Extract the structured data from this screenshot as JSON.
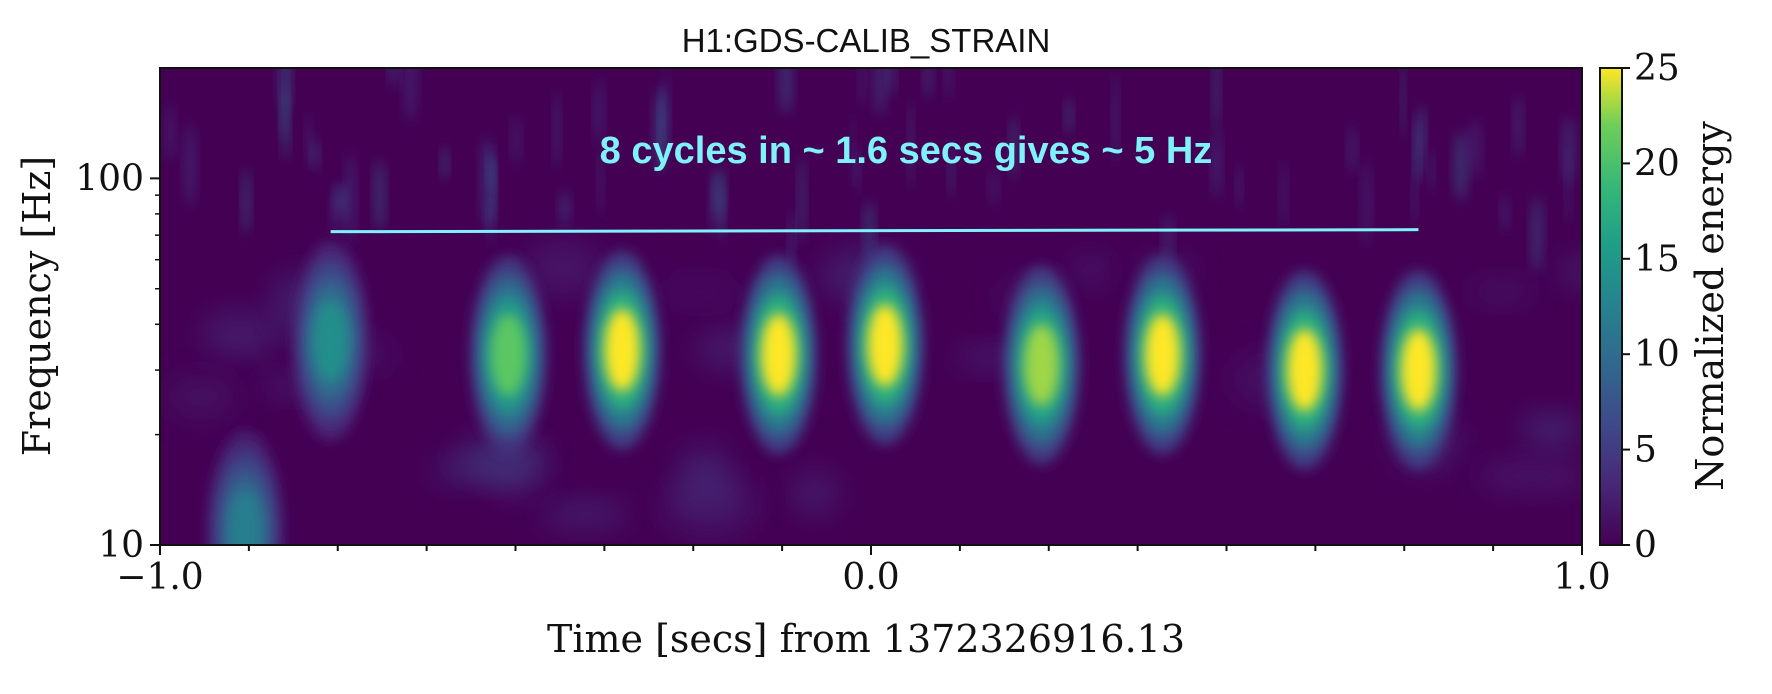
{
  "chart_data": {
    "type": "heatmap",
    "title": "H1:GDS-CALIB_STRAIN",
    "xlabel": "Time [secs] from 1372326916.13",
    "ylabel": "Frequency [Hz]",
    "xlim": [
      -1.0,
      1.0
    ],
    "ylim": [
      10,
      200
    ],
    "y_scale": "log",
    "x_ticks": [
      {
        "value": -1.0,
        "label": "−1.0"
      },
      {
        "value": 0.0,
        "label": "0.0"
      },
      {
        "value": 1.0,
        "label": "1.0"
      }
    ],
    "y_ticks": [
      {
        "value": 10,
        "label": "10"
      },
      {
        "value": 100,
        "label": "100"
      }
    ],
    "colormap": "viridis",
    "colorbar": {
      "label": "Normalized energy",
      "range": [
        0,
        25
      ],
      "ticks": [
        {
          "value": 0,
          "label": "0"
        },
        {
          "value": 5,
          "label": "5"
        },
        {
          "value": 10,
          "label": "10"
        },
        {
          "value": 15,
          "label": "15"
        },
        {
          "value": 20,
          "label": "20"
        },
        {
          "value": 25,
          "label": "25"
        }
      ]
    },
    "blobs": [
      {
        "t": -0.76,
        "f": 36,
        "peak": 14
      },
      {
        "t": -0.51,
        "f": 33,
        "peak": 21
      },
      {
        "t": -0.35,
        "f": 34,
        "peak": 25
      },
      {
        "t": -0.13,
        "f": 33,
        "peak": 25
      },
      {
        "t": 0.02,
        "f": 35,
        "peak": 25
      },
      {
        "t": 0.24,
        "f": 31,
        "peak": 23
      },
      {
        "t": 0.41,
        "f": 33,
        "peak": 25
      },
      {
        "t": 0.61,
        "f": 30,
        "peak": 25
      },
      {
        "t": 0.77,
        "f": 30,
        "peak": 25
      },
      {
        "t": -0.88,
        "f": 11,
        "peak": 12
      }
    ],
    "annotation": {
      "text": "8 cycles in ~ 1.6 secs gives ~ 5 Hz",
      "line": {
        "t_start": -0.76,
        "t_end": 0.77,
        "f": 72
      },
      "color": "#7ef2f8"
    }
  }
}
